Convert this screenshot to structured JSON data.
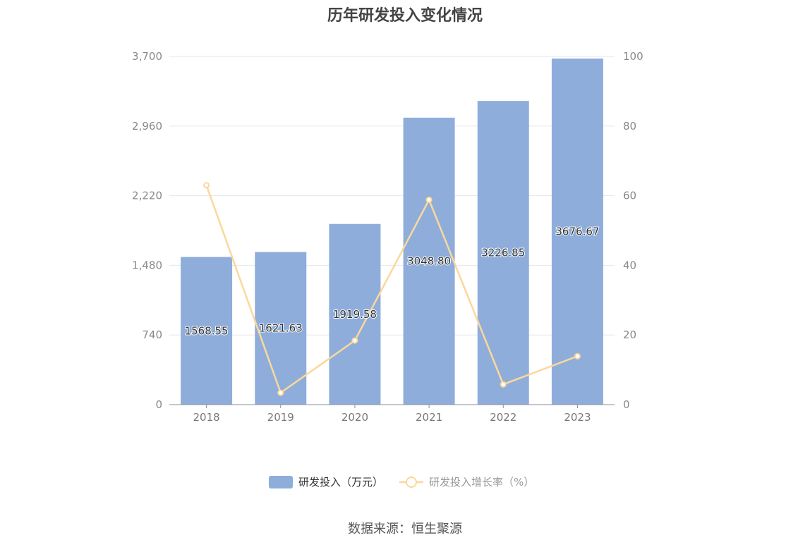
{
  "chart_data": {
    "type": "bar",
    "title": "历年研发投入变化情况",
    "categories": [
      "2018",
      "2019",
      "2020",
      "2021",
      "2022",
      "2023"
    ],
    "series": [
      {
        "name": "研发投入（万元）",
        "type": "bar",
        "axis": "left",
        "values": [
          1568.55,
          1621.63,
          1919.58,
          3048.8,
          3226.85,
          3676.67
        ],
        "labels": [
          "1568.55",
          "1621.63",
          "1919.58",
          "3048.80",
          "3226.85",
          "3676.67"
        ],
        "color": "#8eaddb"
      },
      {
        "name": "研发投入增长率（%）",
        "type": "line",
        "axis": "right",
        "values": [
          63,
          3.4,
          18.4,
          58.8,
          5.8,
          13.9
        ],
        "color": "#fbd89b"
      }
    ],
    "y_left": {
      "min": 0,
      "max": 3700,
      "ticks": [
        0,
        740,
        1480,
        2220,
        2960,
        3700
      ],
      "tick_labels": [
        "0",
        "740",
        "1,480",
        "2,220",
        "2,960",
        "3,700"
      ]
    },
    "y_right": {
      "min": 0,
      "max": 100,
      "ticks": [
        0,
        20,
        40,
        60,
        80,
        100
      ],
      "tick_labels": [
        "0",
        "20",
        "40",
        "60",
        "80",
        "100"
      ]
    },
    "grid": true,
    "legend_position": "bottom"
  },
  "source": "数据来源：恒生聚源"
}
